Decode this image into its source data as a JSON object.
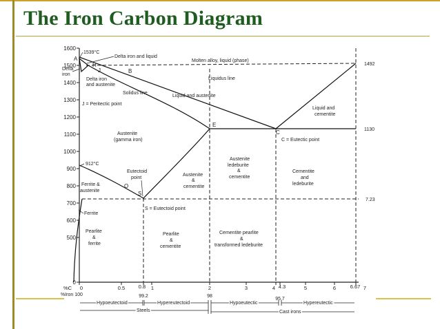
{
  "title": "The Iron Carbon Diagram",
  "colors": {
    "title": "#1f5c1f",
    "accent": "#c9a227",
    "ink": "#222222"
  },
  "y_ticks": [
    "1600",
    "1500",
    "1400",
    "1300",
    "1200",
    "1100",
    "1000",
    "900",
    "800",
    "700",
    "600",
    "500",
    "0"
  ],
  "x_ticks": [
    "0",
    "0.5",
    "0.8",
    "1",
    "2",
    "3",
    "4",
    "4.3",
    "5",
    "6",
    "6.67",
    "7"
  ],
  "x_prefix": "%C",
  "iron_prefix": "%Iron 100",
  "iron_values": [
    "99.2",
    "98",
    "95.7"
  ],
  "ranges": {
    "hypoeutectoid": "Hypoeutectoid",
    "hypereutectoid": "Hypereutectoid",
    "hypoeutectic": "Hypoeutectic",
    "hypereutectic": "Hypereutectic",
    "steels": "Steels",
    "cast_irons": "Cast irons"
  },
  "points": {
    "A": "A",
    "H": "H",
    "J": "J",
    "B": "B",
    "E": "E",
    "C": "C",
    "O": "O",
    "S": "S"
  },
  "labels": {
    "t1539": "1539°C",
    "delta_liquid": "Delta iron and liquid",
    "molten": "Molten alloy, liquid (phase)",
    "t1492": "1492",
    "delta_iron_1": "Delta",
    "delta_iron_2": "iron",
    "delta_aus_1": "Delta iron",
    "delta_aus_2": "and austenite",
    "liquidus": "Liquidus line",
    "solidus": "Solidus line",
    "liq_aus": "Liquid and austenite",
    "peritectic": "J = Peritectic point",
    "liq_cem_1": "Liquid and",
    "liq_cem_2": "cementite",
    "t1130": "1130",
    "austenite_1": "Austenite",
    "austenite_2": "(gamma iron)",
    "eutectic": "C = Eutectic point",
    "aus_led_1": "Austenite",
    "aus_led_2": "ledeburite",
    "aus_led_3": "&",
    "aus_led_4": "cementite",
    "t912": "912°C",
    "eutectoid_1": "Eutectoid",
    "eutectoid_2": "point",
    "aus_cem_1": "Austenite",
    "aus_cem_2": "&",
    "aus_cem_3": "cementite",
    "cem_led_1": "Cementite",
    "cem_led_2": "and",
    "cem_led_3": "ledeburite",
    "fer_aus_1": "Ferrite &",
    "fer_aus_2": "austenite",
    "t723": "7.23",
    "ferrite": "Ferrite",
    "eutectoid_pt": "S = Eutectoid point",
    "pearl_fer_1": "Pearlite",
    "pearl_fer_2": "&",
    "pearl_fer_3": "ferrite",
    "pearl_cem_1": "Pearlite",
    "pearl_cem_2": "&",
    "pearl_cem_3": "cementite",
    "cem_pearl_1": "Cementite pearlite",
    "cem_pearl_2": "&",
    "cem_pearl_3": "transformed ledeburite"
  }
}
